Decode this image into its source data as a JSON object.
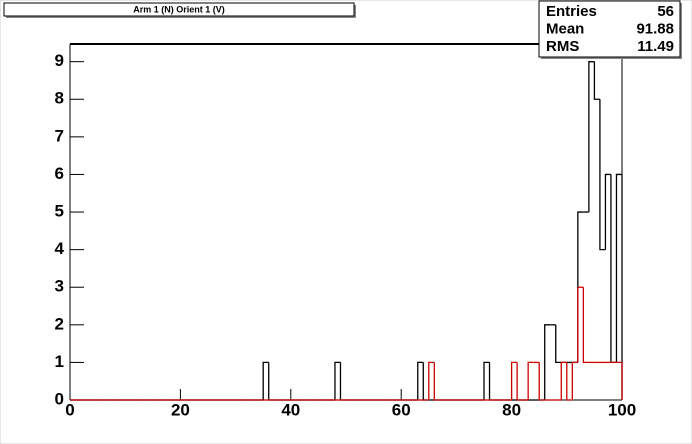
{
  "chart_data": {
    "type": "histogram",
    "title": "Arm 1 (N) Orient 1 (V)",
    "bins": [
      0,
      1,
      2,
      3,
      4,
      5,
      6,
      7,
      8,
      9,
      10,
      11,
      12,
      13,
      14,
      15,
      16,
      17,
      18,
      19,
      20,
      21,
      22,
      23,
      24,
      25,
      26,
      27,
      28,
      29,
      30,
      31,
      32,
      33,
      34,
      35,
      36,
      37,
      38,
      39,
      40,
      41,
      42,
      43,
      44,
      45,
      46,
      47,
      48,
      49,
      50,
      51,
      52,
      53,
      54,
      55,
      56,
      57,
      58,
      59,
      60,
      61,
      62,
      63,
      64,
      65,
      66,
      67,
      68,
      69,
      70,
      71,
      72,
      73,
      74,
      75,
      76,
      77,
      78,
      79,
      80,
      81,
      82,
      83,
      84,
      85,
      86,
      87,
      88,
      89,
      90,
      91,
      92,
      93,
      94,
      95,
      96,
      97,
      98,
      99,
      100
    ],
    "series": [
      {
        "color": "#000000",
        "values": [
          0,
          0,
          0,
          0,
          0,
          0,
          0,
          0,
          0,
          0,
          0,
          0,
          0,
          0,
          0,
          0,
          0,
          0,
          0,
          0,
          0,
          0,
          0,
          0,
          0,
          0,
          0,
          0,
          0,
          0,
          0,
          0,
          0,
          0,
          0,
          1,
          0,
          0,
          0,
          0,
          0,
          0,
          0,
          0,
          0,
          0,
          0,
          0,
          1,
          0,
          0,
          0,
          0,
          0,
          0,
          0,
          0,
          0,
          0,
          0,
          0,
          0,
          0,
          1,
          0,
          0,
          0,
          0,
          0,
          0,
          0,
          0,
          0,
          0,
          0,
          1,
          0,
          0,
          0,
          0,
          0,
          0,
          0,
          0,
          0,
          0,
          2,
          2,
          1,
          1,
          1,
          1,
          5,
          5,
          9,
          8,
          4,
          6,
          1,
          6
        ]
      },
      {
        "color": "#cc0000",
        "values": [
          0,
          0,
          0,
          0,
          0,
          0,
          0,
          0,
          0,
          0,
          0,
          0,
          0,
          0,
          0,
          0,
          0,
          0,
          0,
          0,
          0,
          0,
          0,
          0,
          0,
          0,
          0,
          0,
          0,
          0,
          0,
          0,
          0,
          0,
          0,
          0,
          0,
          0,
          0,
          0,
          0,
          0,
          0,
          0,
          0,
          0,
          0,
          0,
          0,
          0,
          0,
          0,
          0,
          0,
          0,
          0,
          0,
          0,
          0,
          0,
          0,
          0,
          0,
          0,
          0,
          1,
          0,
          0,
          0,
          0,
          0,
          0,
          0,
          0,
          0,
          0,
          0,
          0,
          0,
          0,
          1,
          0,
          0,
          1,
          1,
          0,
          0,
          0,
          0,
          1,
          0,
          1,
          3,
          1,
          1,
          1,
          1,
          1,
          1,
          1
        ]
      }
    ],
    "xlim": [
      0,
      100
    ],
    "xticks": [
      0,
      20,
      40,
      60,
      80,
      100
    ],
    "ylim": [
      0,
      9.47
    ],
    "yticks": [
      0,
      1,
      2,
      3,
      4,
      5,
      6,
      7,
      8,
      9
    ],
    "stats": {
      "labels": [
        "Entries",
        "Mean",
        "RMS"
      ],
      "values": [
        56,
        91.88,
        11.49
      ]
    }
  }
}
